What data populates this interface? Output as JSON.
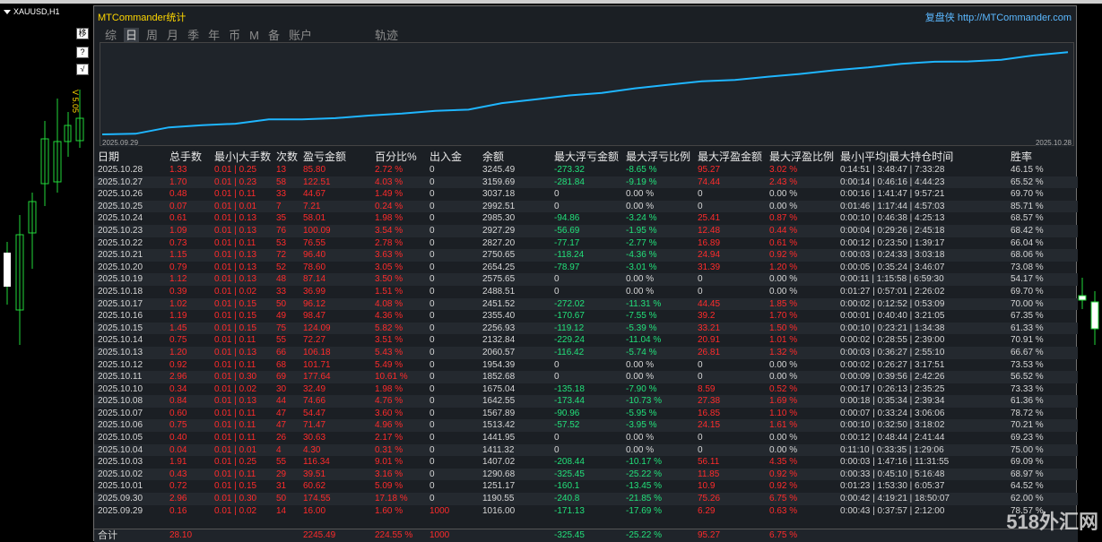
{
  "chart": {
    "symbol": "XAUUSD,H1",
    "scale_label": "V 5.05"
  },
  "side_buttons": [
    "移",
    "?",
    "√"
  ],
  "panel": {
    "title": "MTCommander统计",
    "brand": "复盘侠",
    "url": "http://MTCommander.com"
  },
  "tabs": [
    {
      "label": "综",
      "active": false
    },
    {
      "label": "日",
      "active": true
    },
    {
      "label": "周",
      "active": false
    },
    {
      "label": "月",
      "active": false
    },
    {
      "label": "季",
      "active": false
    },
    {
      "label": "年",
      "active": false
    },
    {
      "label": "币",
      "active": false
    },
    {
      "label": "M",
      "active": false
    },
    {
      "label": "备",
      "active": false
    },
    {
      "label": "账户",
      "active": false
    },
    {
      "label": "轨迹",
      "active": false
    }
  ],
  "equity": {
    "start_date": "2025.09.29",
    "end_date": "2025.10.28",
    "line_color": "#1fb6ff"
  },
  "columns": [
    "日期",
    "总手数",
    "最小|大手数",
    "次数",
    "盈亏金额",
    "百分比%",
    "出入金",
    "余额",
    "最大浮亏金额",
    "最大浮亏比例",
    "最大浮盈金额",
    "最大浮盈比例",
    "最小|平均|最大持仓时间",
    "胜率"
  ],
  "rows": [
    [
      "2025.10.28",
      "1.33",
      "0.01 | 0.25",
      "13",
      "85.80",
      "2.72 %",
      "0",
      "3245.49",
      "-273.32",
      "-8.65 %",
      "95.27",
      "3.02 %",
      "0:14:51 | 3:48:47 | 7:33:28",
      "46.15 %"
    ],
    [
      "2025.10.27",
      "1.70",
      "0.01 | 0.23",
      "58",
      "122.51",
      "4.03 %",
      "0",
      "3159.69",
      "-281.84",
      "-9.19 %",
      "74.44",
      "2.43 %",
      "0:00:14 | 0:46:16 | 4:44:23",
      "65.52 %"
    ],
    [
      "2025.10.26",
      "0.48",
      "0.01 | 0.11",
      "33",
      "44.67",
      "1.49 %",
      "0",
      "3037.18",
      "0",
      "0.00 %",
      "0",
      "0.00 %",
      "0:00:16 | 1:41:47 | 9:57:21",
      "69.70 %"
    ],
    [
      "2025.10.25",
      "0.07",
      "0.01 | 0.01",
      "7",
      "7.21",
      "0.24 %",
      "0",
      "2992.51",
      "0",
      "0.00 %",
      "0",
      "0.00 %",
      "0:01:46 | 1:17:44 | 4:57:03",
      "85.71 %"
    ],
    [
      "2025.10.24",
      "0.61",
      "0.01 | 0.13",
      "35",
      "58.01",
      "1.98 %",
      "0",
      "2985.30",
      "-94.86",
      "-3.24 %",
      "25.41",
      "0.87 %",
      "0:00:10 | 0:46:38 | 4:25:13",
      "68.57 %"
    ],
    [
      "2025.10.23",
      "1.09",
      "0.01 | 0.13",
      "76",
      "100.09",
      "3.54 %",
      "0",
      "2927.29",
      "-56.69",
      "-1.95 %",
      "12.48",
      "0.44 %",
      "0:00:04 | 0:29:26 | 2:45:18",
      "68.42 %"
    ],
    [
      "2025.10.22",
      "0.73",
      "0.01 | 0.11",
      "53",
      "76.55",
      "2.78 %",
      "0",
      "2827.20",
      "-77.17",
      "-2.77 %",
      "16.89",
      "0.61 %",
      "0:00:12 | 0:23:50 | 1:39:17",
      "66.04 %"
    ],
    [
      "2025.10.21",
      "1.15",
      "0.01 | 0.13",
      "72",
      "96.40",
      "3.63 %",
      "0",
      "2750.65",
      "-118.24",
      "-4.36 %",
      "24.94",
      "0.92 %",
      "0:00:03 | 0:24:33 | 3:03:18",
      "68.06 %"
    ],
    [
      "2025.10.20",
      "0.79",
      "0.01 | 0.13",
      "52",
      "78.60",
      "3.05 %",
      "0",
      "2654.25",
      "-78.97",
      "-3.01 %",
      "31.39",
      "1.20 %",
      "0:00:05 | 0:35:24 | 3:46:07",
      "73.08 %"
    ],
    [
      "2025.10.19",
      "1.12",
      "0.01 | 0.13",
      "48",
      "87.14",
      "3.50 %",
      "0",
      "2575.65",
      "0",
      "0.00 %",
      "0",
      "0.00 %",
      "0:00:11 | 1:15:58 | 6:59:30",
      "54.17 %"
    ],
    [
      "2025.10.18",
      "0.39",
      "0.01 | 0.02",
      "33",
      "36.99",
      "1.51 %",
      "0",
      "2488.51",
      "0",
      "0.00 %",
      "0",
      "0.00 %",
      "0:01:27 | 0:57:01 | 2:26:02",
      "69.70 %"
    ],
    [
      "2025.10.17",
      "1.02",
      "0.01 | 0.15",
      "50",
      "96.12",
      "4.08 %",
      "0",
      "2451.52",
      "-272.02",
      "-11.31 %",
      "44.45",
      "1.85 %",
      "0:00:02 | 0:12:52 | 0:53:09",
      "70.00 %"
    ],
    [
      "2025.10.16",
      "1.19",
      "0.01 | 0.15",
      "49",
      "98.47",
      "4.36 %",
      "0",
      "2355.40",
      "-170.67",
      "-7.55 %",
      "39.2",
      "1.70 %",
      "0:00:01 | 0:40:40 | 3:21:05",
      "67.35 %"
    ],
    [
      "2025.10.15",
      "1.45",
      "0.01 | 0.15",
      "75",
      "124.09",
      "5.82 %",
      "0",
      "2256.93",
      "-119.12",
      "-5.39 %",
      "33.21",
      "1.50 %",
      "0:00:10 | 0:23:21 | 1:34:38",
      "61.33 %"
    ],
    [
      "2025.10.14",
      "0.75",
      "0.01 | 0.11",
      "55",
      "72.27",
      "3.51 %",
      "0",
      "2132.84",
      "-229.24",
      "-11.04 %",
      "20.91",
      "1.01 %",
      "0:00:02 | 0:28:55 | 2:39:00",
      "70.91 %"
    ],
    [
      "2025.10.13",
      "1.20",
      "0.01 | 0.13",
      "66",
      "106.18",
      "5.43 %",
      "0",
      "2060.57",
      "-116.42",
      "-5.74 %",
      "26.81",
      "1.32 %",
      "0:00:03 | 0:36:27 | 2:55:10",
      "66.67 %"
    ],
    [
      "2025.10.12",
      "0.92",
      "0.01 | 0.11",
      "68",
      "101.71",
      "5.49 %",
      "0",
      "1954.39",
      "0",
      "0.00 %",
      "0",
      "0.00 %",
      "0:00:02 | 0:26:27 | 3:17:51",
      "73.53 %"
    ],
    [
      "2025.10.11",
      "2.96",
      "0.01 | 0.30",
      "69",
      "177.64",
      "10.61 %",
      "0",
      "1852.68",
      "0",
      "0.00 %",
      "0",
      "0.00 %",
      "0:00:09 | 0:39:56 | 2:42:26",
      "56.52 %"
    ],
    [
      "2025.10.10",
      "0.34",
      "0.01 | 0.02",
      "30",
      "32.49",
      "1.98 %",
      "0",
      "1675.04",
      "-135.18",
      "-7.90 %",
      "8.59",
      "0.52 %",
      "0:00:17 | 0:26:13 | 2:35:25",
      "73.33 %"
    ],
    [
      "2025.10.08",
      "0.84",
      "0.01 | 0.13",
      "44",
      "74.66",
      "4.76 %",
      "0",
      "1642.55",
      "-173.44",
      "-10.73 %",
      "27.38",
      "1.69 %",
      "0:00:18 | 0:35:34 | 2:39:34",
      "61.36 %"
    ],
    [
      "2025.10.07",
      "0.60",
      "0.01 | 0.11",
      "47",
      "54.47",
      "3.60 %",
      "0",
      "1567.89",
      "-90.96",
      "-5.95 %",
      "16.85",
      "1.10 %",
      "0:00:07 | 0:33:24 | 3:06:06",
      "78.72 %"
    ],
    [
      "2025.10.06",
      "0.75",
      "0.01 | 0.11",
      "47",
      "71.47",
      "4.96 %",
      "0",
      "1513.42",
      "-57.52",
      "-3.95 %",
      "24.15",
      "1.61 %",
      "0:00:10 | 0:32:50 | 3:18:02",
      "70.21 %"
    ],
    [
      "2025.10.05",
      "0.40",
      "0.01 | 0.11",
      "26",
      "30.63",
      "2.17 %",
      "0",
      "1441.95",
      "0",
      "0.00 %",
      "0",
      "0.00 %",
      "0:00:12 | 0:48:44 | 2:41:44",
      "69.23 %"
    ],
    [
      "2025.10.04",
      "0.04",
      "0.01 | 0.01",
      "4",
      "4.30",
      "0.31 %",
      "0",
      "1411.32",
      "0",
      "0.00 %",
      "0",
      "0.00 %",
      "0:11:10 | 0:33:35 | 1:29:06",
      "75.00 %"
    ],
    [
      "2025.10.03",
      "1.91",
      "0.01 | 0.25",
      "55",
      "116.34",
      "9.01 %",
      "0",
      "1407.02",
      "-208.44",
      "-10.17 %",
      "56.11",
      "4.35 %",
      "0:00:03 | 1:47:16 | 11:31:55",
      "69.09 %"
    ],
    [
      "2025.10.02",
      "0.43",
      "0.01 | 0.11",
      "29",
      "39.51",
      "3.16 %",
      "0",
      "1290.68",
      "-325.45",
      "-25.22 %",
      "11.85",
      "0.92 %",
      "0:00:33 | 0:45:10 | 5:16:48",
      "68.97 %"
    ],
    [
      "2025.10.01",
      "0.72",
      "0.01 | 0.15",
      "31",
      "60.62",
      "5.09 %",
      "0",
      "1251.17",
      "-160.1",
      "-13.45 %",
      "10.9",
      "0.92 %",
      "0:01:23 | 1:53:30 | 6:05:37",
      "64.52 %"
    ],
    [
      "2025.09.30",
      "2.96",
      "0.01 | 0.30",
      "50",
      "174.55",
      "17.18 %",
      "0",
      "1190.55",
      "-240.8",
      "-21.85 %",
      "75.26",
      "6.75 %",
      "0:00:42 | 4:19:21 | 18:50:07",
      "62.00 %"
    ],
    [
      "2025.09.29",
      "0.16",
      "0.01 | 0.02",
      "14",
      "16.00",
      "1.60 %",
      "1000",
      "1016.00",
      "-171.13",
      "-17.69 %",
      "6.29",
      "0.63 %",
      "0:00:43 | 0:37:57 | 2:12:00",
      "78.57 %"
    ]
  ],
  "total": {
    "label": "合计",
    "lots": "28.10",
    "profit": "2245.49",
    "percent": "224.55 %",
    "deposit": "1000",
    "max_loss": "-325.45",
    "max_loss_pct": "-25.22 %",
    "max_gain": "95.27",
    "max_gain_pct": "6.75 %"
  },
  "watermark": "518外汇网",
  "colors": {
    "profit": "#ff2b2b",
    "loss": "#22e07a",
    "accent": "#ffd700"
  }
}
